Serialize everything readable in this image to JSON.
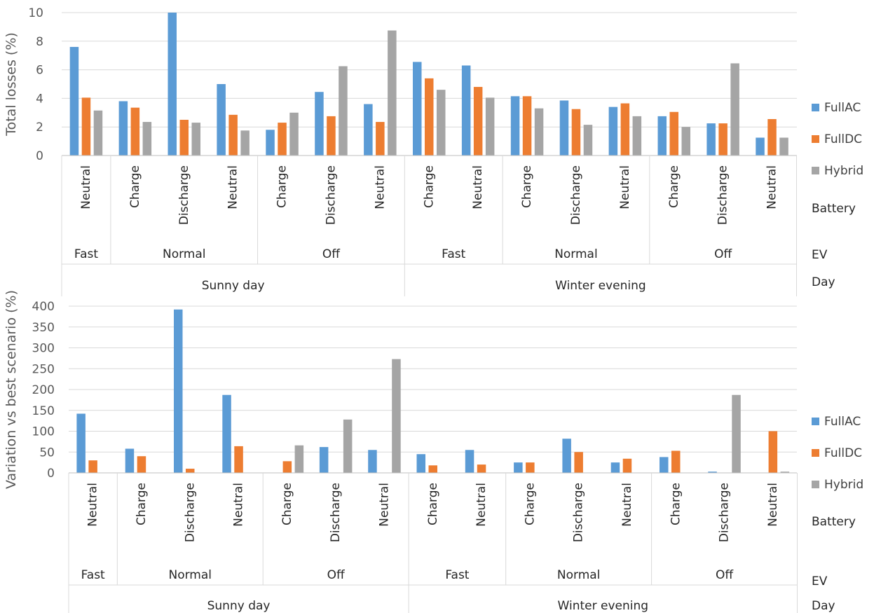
{
  "chart_data": [
    {
      "type": "bar",
      "ylabel": "Total losses (%)",
      "ylim": [
        0,
        10
      ],
      "yticks": [
        0,
        2,
        4,
        6,
        8,
        10
      ],
      "grid": true,
      "legend_position": "right",
      "categories": [
        "Neutral",
        "Charge",
        "Discharge",
        "Neutral",
        "Charge",
        "Discharge",
        "Neutral",
        "Charge",
        "Neutral",
        "Charge",
        "Discharge",
        "Neutral",
        "Charge",
        "Discharge",
        "Neutral"
      ],
      "ev_groups": [
        {
          "label": "Fast",
          "span": 1
        },
        {
          "label": "Normal",
          "span": 3
        },
        {
          "label": "Off",
          "span": 3
        },
        {
          "label": "Fast",
          "span": 2
        },
        {
          "label": "Normal",
          "span": 3
        },
        {
          "label": "Off",
          "span": 3
        }
      ],
      "day_groups": [
        {
          "label": "Sunny day",
          "span": 7
        },
        {
          "label": "Winter evening",
          "span": 8
        }
      ],
      "level_labels": [
        "Battery",
        "EV",
        "Day"
      ],
      "series": [
        {
          "name": "FullAC",
          "color": "#5B9BD5",
          "values": [
            7.6,
            3.8,
            11.0,
            5.0,
            1.8,
            4.45,
            3.6,
            6.55,
            6.3,
            4.15,
            3.85,
            3.4,
            2.75,
            2.25,
            1.25
          ]
        },
        {
          "name": "FullDC",
          "color": "#ED7D31",
          "values": [
            4.05,
            3.35,
            2.5,
            2.85,
            2.3,
            2.75,
            2.35,
            5.4,
            4.8,
            4.15,
            3.25,
            3.65,
            3.05,
            2.25,
            2.55
          ]
        },
        {
          "name": "Hybrid",
          "color": "#A5A5A5",
          "values": [
            3.15,
            2.35,
            2.3,
            1.75,
            3.0,
            6.25,
            8.75,
            4.6,
            4.05,
            3.3,
            2.15,
            2.75,
            2.0,
            6.45,
            1.25
          ]
        }
      ]
    },
    {
      "type": "bar",
      "ylabel": "Variation vs best scenario (%)",
      "ylim": [
        0,
        400
      ],
      "yticks": [
        0,
        50,
        100,
        150,
        200,
        250,
        300,
        350,
        400
      ],
      "grid": true,
      "legend_position": "right",
      "categories": [
        "Neutral",
        "Charge",
        "Discharge",
        "Neutral",
        "Charge",
        "Discharge",
        "Neutral",
        "Charge",
        "Neutral",
        "Charge",
        "Discharge",
        "Neutral",
        "Charge",
        "Discharge",
        "Neutral"
      ],
      "ev_groups": [
        {
          "label": "Fast",
          "span": 1
        },
        {
          "label": "Normal",
          "span": 3
        },
        {
          "label": "Off",
          "span": 3
        },
        {
          "label": "Fast",
          "span": 2
        },
        {
          "label": "Normal",
          "span": 3
        },
        {
          "label": "Off",
          "span": 3
        }
      ],
      "day_groups": [
        {
          "label": "Sunny day",
          "span": 7
        },
        {
          "label": "Winter evening",
          "span": 8
        }
      ],
      "level_labels": [
        "Battery",
        "EV",
        "Day"
      ],
      "series": [
        {
          "name": "FullAC",
          "color": "#5B9BD5",
          "values": [
            142,
            58,
            392,
            187,
            0,
            62,
            55,
            45,
            55,
            25,
            82,
            25,
            38,
            3,
            0
          ]
        },
        {
          "name": "FullDC",
          "color": "#ED7D31",
          "values": [
            30,
            40,
            10,
            64,
            28,
            0,
            0,
            18,
            20,
            25,
            50,
            34,
            53,
            0,
            100
          ]
        },
        {
          "name": "Hybrid",
          "color": "#A5A5A5",
          "values": [
            0,
            0,
            0,
            0,
            66,
            128,
            273,
            0,
            0,
            0,
            0,
            0,
            0,
            187,
            3
          ]
        }
      ]
    }
  ]
}
